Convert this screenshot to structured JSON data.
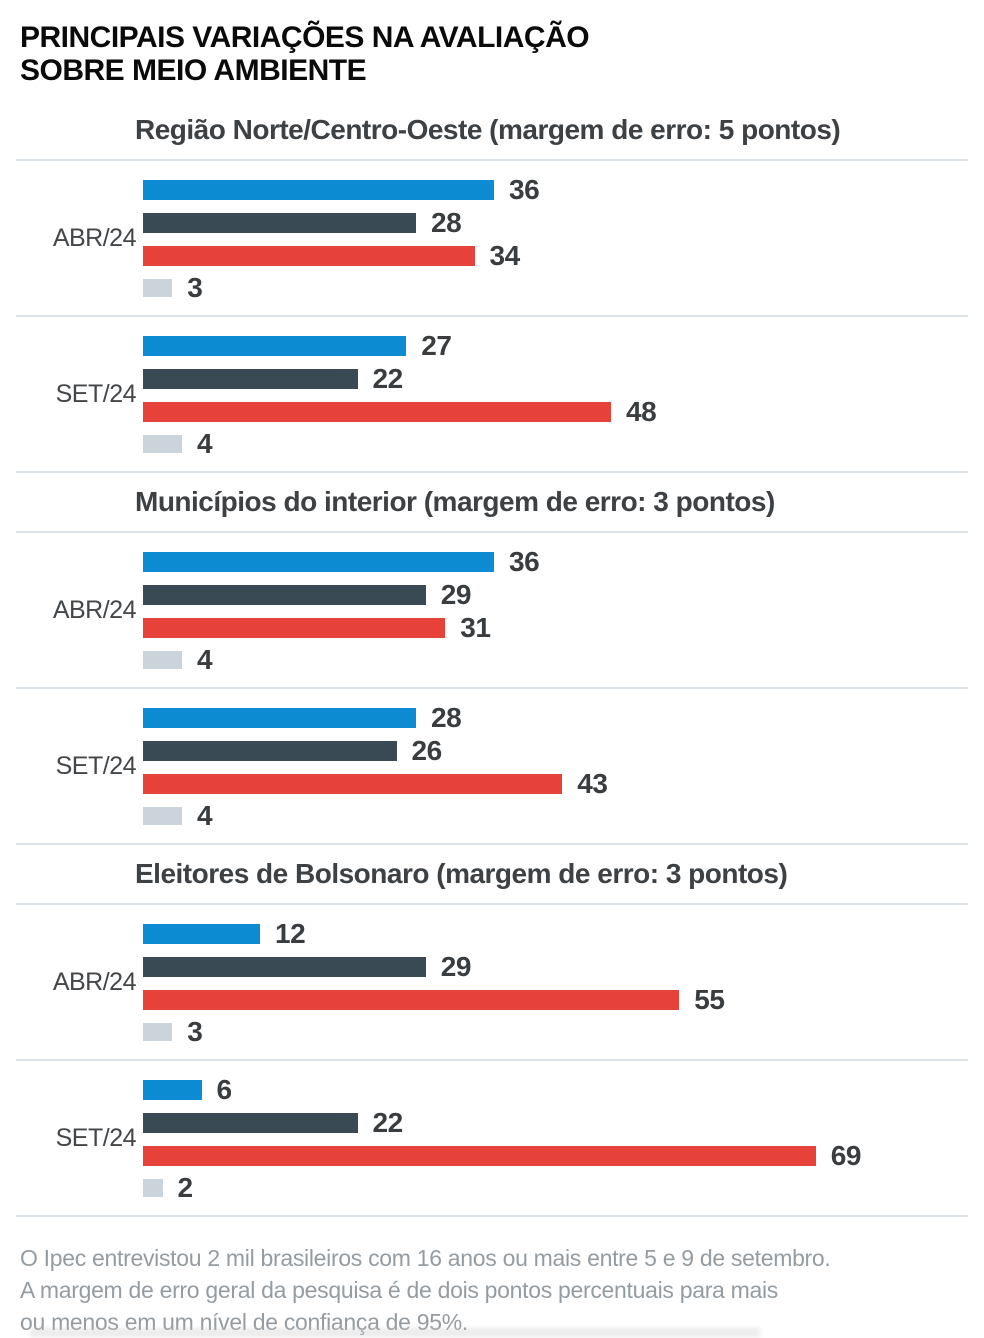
{
  "title": {
    "line1": "PRINCIPAIS VARIAÇÕES NA AVALIAÇÃO",
    "line2": "SOBRE MEIO AMBIENTE"
  },
  "footer": {
    "lines": [
      "O Ipec entrevistou 2 mil brasileiros com 16 anos ou mais entre 5 e 9 de setembro.",
      "A margem de erro geral da pesquisa é de dois pontos percentuais para mais",
      "ou menos em um nível de confiança de 95%."
    ]
  },
  "colors": {
    "blue": "#0d8bd2",
    "dark_slate": "#3a4a54",
    "red": "#e6423a",
    "light_gray": "#cbd4da",
    "separator": "#dde4e8",
    "section_header_text": "#3e4144",
    "value_text": "#3a3d3f",
    "group_label_text": "#43474a",
    "footnote_text": "#959ca1",
    "title_text": "#0a0a0a"
  },
  "chart_data": {
    "type": "bar",
    "orientation": "horizontal",
    "title": "PRINCIPAIS VARIAÇÕES NA AVALIAÇÃO SOBRE MEIO AMBIENTE",
    "xlabel": "",
    "ylabel": "",
    "xlim": [
      0,
      69
    ],
    "grid": false,
    "legend_position": "none",
    "value_labels_shown": true,
    "series_colors": [
      {
        "key": "blue",
        "hex": "#0d8bd2"
      },
      {
        "key": "dark_slate",
        "hex": "#3a4a54"
      },
      {
        "key": "red",
        "hex": "#e6423a"
      },
      {
        "key": "light_gray",
        "hex": "#cbd4da"
      }
    ],
    "sections": [
      {
        "header": "Região Norte/Centro-Oeste (margem de erro: 5 pontos)",
        "groups": [
          {
            "label": "ABR/24",
            "values": [
              {
                "series": "blue",
                "value": 36
              },
              {
                "series": "dark_slate",
                "value": 28
              },
              {
                "series": "red",
                "value": 34
              },
              {
                "series": "light_gray",
                "value": 3
              }
            ]
          },
          {
            "label": "SET/24",
            "values": [
              {
                "series": "blue",
                "value": 27
              },
              {
                "series": "dark_slate",
                "value": 22
              },
              {
                "series": "red",
                "value": 48
              },
              {
                "series": "light_gray",
                "value": 4
              }
            ]
          }
        ]
      },
      {
        "header": "Municípios do interior (margem de erro: 3 pontos)",
        "groups": [
          {
            "label": "ABR/24",
            "values": [
              {
                "series": "blue",
                "value": 36
              },
              {
                "series": "dark_slate",
                "value": 29
              },
              {
                "series": "red",
                "value": 31
              },
              {
                "series": "light_gray",
                "value": 4
              }
            ]
          },
          {
            "label": "SET/24",
            "values": [
              {
                "series": "blue",
                "value": 28
              },
              {
                "series": "dark_slate",
                "value": 26
              },
              {
                "series": "red",
                "value": 43
              },
              {
                "series": "light_gray",
                "value": 4
              }
            ]
          }
        ]
      },
      {
        "header": "Eleitores de Bolsonaro (margem de erro: 3 pontos)",
        "groups": [
          {
            "label": "ABR/24",
            "values": [
              {
                "series": "blue",
                "value": 12
              },
              {
                "series": "dark_slate",
                "value": 29
              },
              {
                "series": "red",
                "value": 55
              },
              {
                "series": "light_gray",
                "value": 3
              }
            ]
          },
          {
            "label": "SET/24",
            "values": [
              {
                "series": "blue",
                "value": 6
              },
              {
                "series": "dark_slate",
                "value": 22
              },
              {
                "series": "red",
                "value": 69
              },
              {
                "series": "light_gray",
                "value": 2
              }
            ]
          }
        ]
      }
    ]
  }
}
